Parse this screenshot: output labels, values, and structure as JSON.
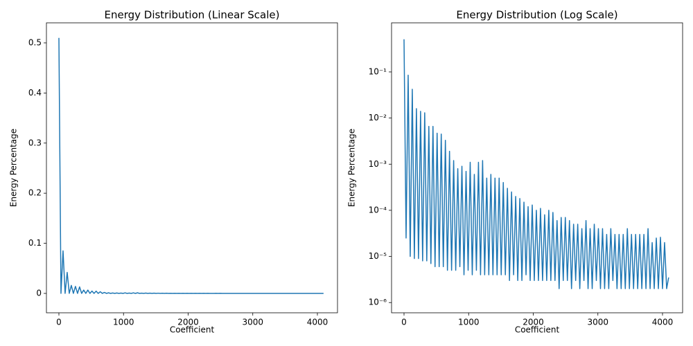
{
  "chart_data": [
    {
      "type": "line",
      "title": "Energy Distribution (Linear Scale)",
      "x_label": "Coefficient",
      "y_label": "Energy Percentage",
      "yscale": "linear",
      "xlim": [
        -193,
        4311
      ],
      "ylim": [
        -0.0387,
        0.54
      ],
      "xticks": [
        0,
        1000,
        2000,
        3000,
        4000
      ],
      "yticks": [
        0.0,
        0.1,
        0.2,
        0.3,
        0.4,
        0.5
      ],
      "series": [
        {
          "name": "Energy",
          "color": "#1f77b4",
          "x": [
            0,
            32,
            64,
            96,
            128,
            160,
            192,
            224,
            256,
            288,
            320,
            352,
            384,
            416,
            448,
            480,
            512,
            544,
            576,
            608,
            640,
            672,
            704,
            736,
            768,
            800,
            832,
            864,
            896,
            928,
            960,
            992,
            1024,
            1056,
            1088,
            1120,
            1152,
            1184,
            1216,
            1248,
            1280,
            1312,
            1344,
            1376,
            1408,
            1440,
            1472,
            1504,
            1536,
            1568,
            1600,
            1632,
            1664,
            1696,
            1728,
            1760,
            1792,
            1824,
            1856,
            1888,
            1920,
            1952,
            1984,
            2016,
            2048,
            2080,
            2112,
            2144,
            2176,
            2208,
            2240,
            2272,
            2304,
            2336,
            2368,
            2400,
            2432,
            2464,
            2496,
            2528,
            2560,
            2592,
            2624,
            2656,
            2688,
            2720,
            2752,
            2784,
            2816,
            2848,
            2880,
            2912,
            2944,
            2976,
            3008,
            3040,
            3072,
            3104,
            3136,
            3168,
            3200,
            3232,
            3264,
            3296,
            3328,
            3360,
            3392,
            3424,
            3456,
            3488,
            3520,
            3552,
            3584,
            3616,
            3648,
            3680,
            3712,
            3744,
            3776,
            3808,
            3840,
            3872,
            3904,
            3936,
            3968,
            4000,
            4032,
            4064,
            4095
          ],
          "values": [
            0.51,
            2.5e-05,
            0.085,
            1e-05,
            0.042,
            9e-06,
            0.016,
            9e-06,
            0.014,
            8e-06,
            0.013,
            8e-06,
            0.0066,
            7e-06,
            0.0066,
            6e-06,
            0.0047,
            6e-06,
            0.0045,
            6e-06,
            0.0033,
            5e-06,
            0.0019,
            5e-06,
            0.0012,
            5e-06,
            0.0008,
            6e-06,
            0.0009,
            4e-06,
            0.0007,
            5e-06,
            0.0011,
            4e-06,
            0.0006,
            5e-06,
            0.0011,
            4e-06,
            0.0012,
            4e-06,
            0.0005,
            4e-06,
            0.0006,
            4e-06,
            0.0005,
            4e-06,
            0.0005,
            4e-06,
            0.0004,
            4e-06,
            0.0003,
            3e-06,
            0.00025,
            4e-06,
            0.0002,
            3e-06,
            0.00018,
            3e-06,
            0.00015,
            4e-06,
            0.00012,
            3e-06,
            0.00013,
            3e-06,
            0.0001,
            3e-06,
            0.00011,
            3e-06,
            8e-05,
            3e-06,
            0.0001,
            3e-06,
            9e-05,
            3e-06,
            6e-05,
            2e-06,
            7e-05,
            3e-06,
            7e-05,
            3e-06,
            6e-05,
            2e-06,
            5e-05,
            3e-06,
            5e-05,
            2e-06,
            4e-05,
            3e-06,
            6e-05,
            2e-06,
            4e-05,
            2e-06,
            5e-05,
            3e-06,
            4e-05,
            2e-06,
            4e-05,
            2e-06,
            3e-05,
            2e-06,
            4e-05,
            3e-06,
            3e-05,
            2e-06,
            3e-05,
            2e-06,
            3e-05,
            2e-06,
            4e-05,
            2e-06,
            3e-05,
            2e-06,
            3e-05,
            2e-06,
            3e-05,
            2e-06,
            3e-05,
            2e-06,
            4e-05,
            2e-06,
            2e-05,
            2e-06,
            2.5e-05,
            2e-06,
            2.6e-05,
            2e-06,
            2e-05,
            2e-06,
            3.5e-06
          ]
        }
      ]
    },
    {
      "type": "line",
      "title": "Energy Distribution (Log Scale)",
      "x_label": "Coefficient",
      "y_label": "Energy Percentage",
      "yscale": "log",
      "xlim": [
        -193,
        4311
      ],
      "ylim": [
        6e-07,
        1.16
      ],
      "xticks": [
        0,
        1000,
        2000,
        3000,
        4000
      ],
      "yticks": [
        {
          "value": 1e-06,
          "label": "10⁻⁶"
        },
        {
          "value": 1e-05,
          "label": "10⁻⁵"
        },
        {
          "value": 0.0001,
          "label": "10⁻⁴"
        },
        {
          "value": 0.001,
          "label": "10⁻³"
        },
        {
          "value": 0.01,
          "label": "10⁻²"
        },
        {
          "value": 0.1,
          "label": "10⁻¹"
        }
      ],
      "series": [
        {
          "name": "Energy",
          "color": "#1f77b4",
          "x": [
            0,
            32,
            64,
            96,
            128,
            160,
            192,
            224,
            256,
            288,
            320,
            352,
            384,
            416,
            448,
            480,
            512,
            544,
            576,
            608,
            640,
            672,
            704,
            736,
            768,
            800,
            832,
            864,
            896,
            928,
            960,
            992,
            1024,
            1056,
            1088,
            1120,
            1152,
            1184,
            1216,
            1248,
            1280,
            1312,
            1344,
            1376,
            1408,
            1440,
            1472,
            1504,
            1536,
            1568,
            1600,
            1632,
            1664,
            1696,
            1728,
            1760,
            1792,
            1824,
            1856,
            1888,
            1920,
            1952,
            1984,
            2016,
            2048,
            2080,
            2112,
            2144,
            2176,
            2208,
            2240,
            2272,
            2304,
            2336,
            2368,
            2400,
            2432,
            2464,
            2496,
            2528,
            2560,
            2592,
            2624,
            2656,
            2688,
            2720,
            2752,
            2784,
            2816,
            2848,
            2880,
            2912,
            2944,
            2976,
            3008,
            3040,
            3072,
            3104,
            3136,
            3168,
            3200,
            3232,
            3264,
            3296,
            3328,
            3360,
            3392,
            3424,
            3456,
            3488,
            3520,
            3552,
            3584,
            3616,
            3648,
            3680,
            3712,
            3744,
            3776,
            3808,
            3840,
            3872,
            3904,
            3936,
            3968,
            4000,
            4032,
            4064,
            4095
          ],
          "values": [
            0.51,
            2.5e-05,
            0.085,
            1e-05,
            0.042,
            9e-06,
            0.016,
            9e-06,
            0.014,
            8e-06,
            0.013,
            8e-06,
            0.0066,
            7e-06,
            0.0066,
            6e-06,
            0.0047,
            6e-06,
            0.0045,
            6e-06,
            0.0033,
            5e-06,
            0.0019,
            5e-06,
            0.0012,
            5e-06,
            0.0008,
            6e-06,
            0.0009,
            4e-06,
            0.0007,
            5e-06,
            0.0011,
            4e-06,
            0.0006,
            5e-06,
            0.0011,
            4e-06,
            0.0012,
            4e-06,
            0.0005,
            4e-06,
            0.0006,
            4e-06,
            0.0005,
            4e-06,
            0.0005,
            4e-06,
            0.0004,
            4e-06,
            0.0003,
            3e-06,
            0.00025,
            4e-06,
            0.0002,
            3e-06,
            0.00018,
            3e-06,
            0.00015,
            4e-06,
            0.00012,
            3e-06,
            0.00013,
            3e-06,
            0.0001,
            3e-06,
            0.00011,
            3e-06,
            8e-05,
            3e-06,
            0.0001,
            3e-06,
            9e-05,
            3e-06,
            6e-05,
            2e-06,
            7e-05,
            3e-06,
            7e-05,
            3e-06,
            6e-05,
            2e-06,
            5e-05,
            3e-06,
            5e-05,
            2e-06,
            4e-05,
            3e-06,
            6e-05,
            2e-06,
            4e-05,
            2e-06,
            5e-05,
            3e-06,
            4e-05,
            2e-06,
            4e-05,
            2e-06,
            3e-05,
            2e-06,
            4e-05,
            3e-06,
            3e-05,
            2e-06,
            3e-05,
            2e-06,
            3e-05,
            2e-06,
            4e-05,
            2e-06,
            3e-05,
            2e-06,
            3e-05,
            2e-06,
            3e-05,
            2e-06,
            3e-05,
            2e-06,
            4e-05,
            2e-06,
            2e-05,
            2e-06,
            2.5e-05,
            2e-06,
            2.6e-05,
            2e-06,
            2e-05,
            2e-06,
            3.5e-06
          ]
        }
      ]
    }
  ]
}
